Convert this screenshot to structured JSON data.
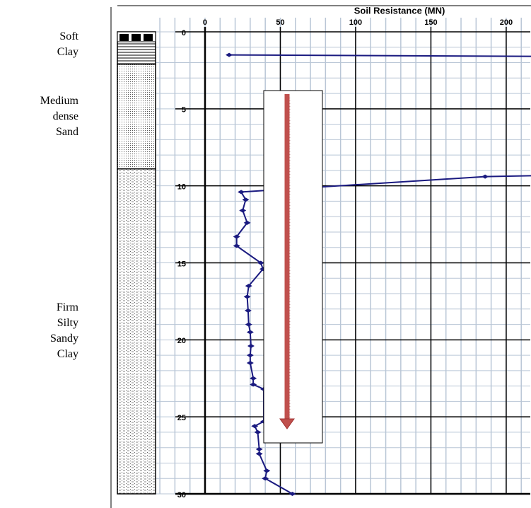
{
  "chart_data": {
    "type": "line",
    "x_label": "Soil Resistance (MN)",
    "x": [
      16,
      240,
      240,
      186,
      24,
      27,
      25,
      28,
      21,
      21,
      37,
      38.5,
      29,
      28,
      28.6,
      29,
      30,
      30.5,
      30,
      30,
      32,
      32,
      39,
      39,
      33,
      35,
      36,
      36,
      41,
      40,
      58
    ],
    "y": [
      1.5,
      1.6,
      9.3,
      9.4,
      10.4,
      10.9,
      11.6,
      12.4,
      13.3,
      13.9,
      15.0,
      15.4,
      16.5,
      17.2,
      18.1,
      19.0,
      19.5,
      20.4,
      21.0,
      21.5,
      22.5,
      22.9,
      23.2,
      25.3,
      25.6,
      26.0,
      27.1,
      27.4,
      28.5,
      29.0,
      30.0
    ],
    "color": "#1a1a80",
    "xlim": [
      -33,
      216
    ],
    "xticks": [
      0,
      50,
      100,
      150,
      200
    ],
    "ylim": [
      0,
      30
    ],
    "yticks": [
      0,
      5,
      10,
      15,
      20,
      25,
      30
    ],
    "y_inverted": true,
    "x_axis_position": "top",
    "grid": true,
    "x_minor_step": 10,
    "y_minor_step": 1,
    "layers": [
      {
        "label": "Soft\nClay",
        "top": 0,
        "bottom": 2.1
      },
      {
        "label": "Medium\ndense\nSand",
        "top": 2.1,
        "bottom": 8.9
      },
      {
        "label": "Firm\nSilty\nSandy\nClay",
        "top": 8.9,
        "bottom": 30
      }
    ]
  }
}
